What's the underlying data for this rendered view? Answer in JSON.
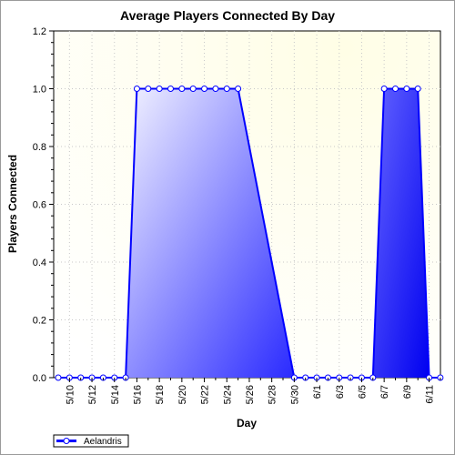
{
  "chart_data": {
    "type": "area",
    "title": "Average Players Connected By Day",
    "xlabel": "Day",
    "ylabel": "Players Connected",
    "ylim": [
      0,
      1.2
    ],
    "yticks": [
      "0.0",
      "0.2",
      "0.4",
      "0.6",
      "0.8",
      "1.0",
      "1.2"
    ],
    "ytick_values": [
      0,
      0.2,
      0.4,
      0.6,
      0.8,
      1.0,
      1.2
    ],
    "x": [
      "5/9",
      "5/10",
      "5/11",
      "5/12",
      "5/13",
      "5/14",
      "5/15",
      "5/16",
      "5/17",
      "5/18",
      "5/19",
      "5/20",
      "5/21",
      "5/22",
      "5/23",
      "5/24",
      "5/25",
      "5/30",
      "5/31",
      "6/1",
      "6/2",
      "6/3",
      "6/4",
      "6/5",
      "6/6",
      "6/7",
      "6/8",
      "6/9",
      "6/10",
      "6/11",
      "6/12"
    ],
    "xtick_labels": [
      "5/10",
      "5/12",
      "5/14",
      "5/16",
      "5/18",
      "5/20",
      "5/22",
      "5/24",
      "5/26",
      "5/28",
      "5/30",
      "6/1",
      "6/3",
      "6/5",
      "6/7",
      "6/9",
      "6/11"
    ],
    "series": [
      {
        "name": "Aelandris",
        "values": [
          0,
          0,
          0,
          0,
          0,
          0,
          0,
          1,
          1,
          1,
          1,
          1,
          1,
          1,
          1,
          1,
          1,
          0,
          0,
          0,
          0,
          0,
          0,
          0,
          0,
          1,
          1,
          1,
          1,
          0,
          0
        ]
      }
    ],
    "grid": true,
    "legend": "bottom-left",
    "colors": {
      "line": "#0000ff",
      "fill_light": "#e4e4ff",
      "fill_dark": "#0000ff",
      "plot_background": "#fffde0",
      "marker_fill": "#ffffff"
    }
  }
}
